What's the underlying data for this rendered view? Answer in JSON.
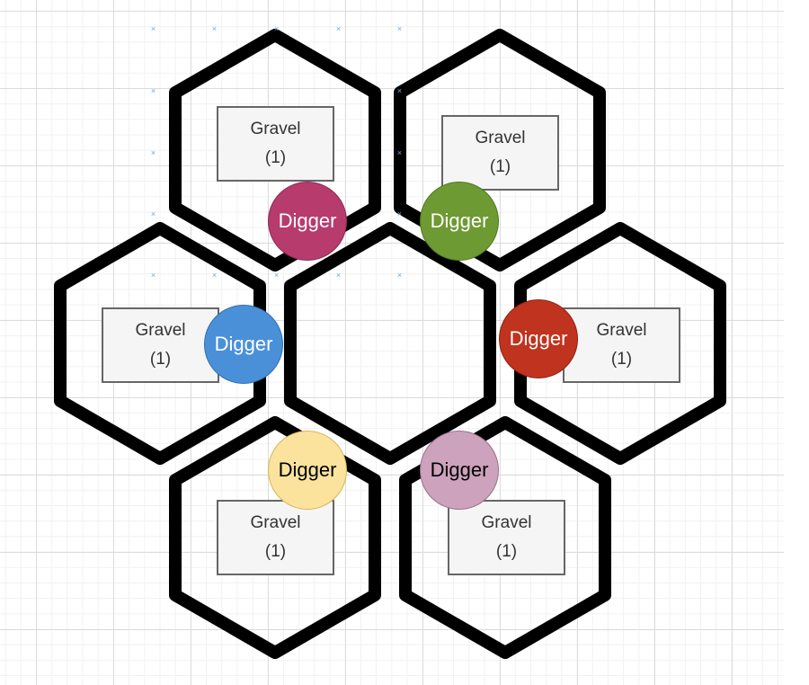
{
  "tiles": [
    {
      "id": "top-left",
      "resource": {
        "name": "Gravel",
        "count": "(1)"
      }
    },
    {
      "id": "top-right",
      "resource": {
        "name": "Gravel",
        "count": "(1)"
      }
    },
    {
      "id": "middle-left",
      "resource": {
        "name": "Gravel",
        "count": "(1)"
      }
    },
    {
      "id": "center",
      "resource": null
    },
    {
      "id": "middle-right",
      "resource": {
        "name": "Gravel",
        "count": "(1)"
      }
    },
    {
      "id": "bottom-left",
      "resource": {
        "name": "Gravel",
        "count": "(1)"
      }
    },
    {
      "id": "bottom-right",
      "resource": {
        "name": "Gravel",
        "count": "(1)"
      }
    }
  ],
  "diggers": [
    {
      "label": "Digger",
      "fill": "#b83b6e",
      "border": "#8a2a52",
      "text_color": "#ffffff"
    },
    {
      "label": "Digger",
      "fill": "#6d9a32",
      "border": "#4e7a20",
      "text_color": "#ffffff"
    },
    {
      "label": "Digger",
      "fill": "#4a90d9",
      "border": "#2f6fae",
      "text_color": "#ffffff"
    },
    {
      "label": "Digger",
      "fill": "#c0331e",
      "border": "#8e2412",
      "text_color": "#ffffff"
    },
    {
      "label": "Digger",
      "fill": "#fbe39e",
      "border": "#d6b656",
      "text_color": "#000000"
    },
    {
      "label": "Digger",
      "fill": "#cda2bc",
      "border": "#9a6d8a",
      "text_color": "#000000"
    }
  ]
}
